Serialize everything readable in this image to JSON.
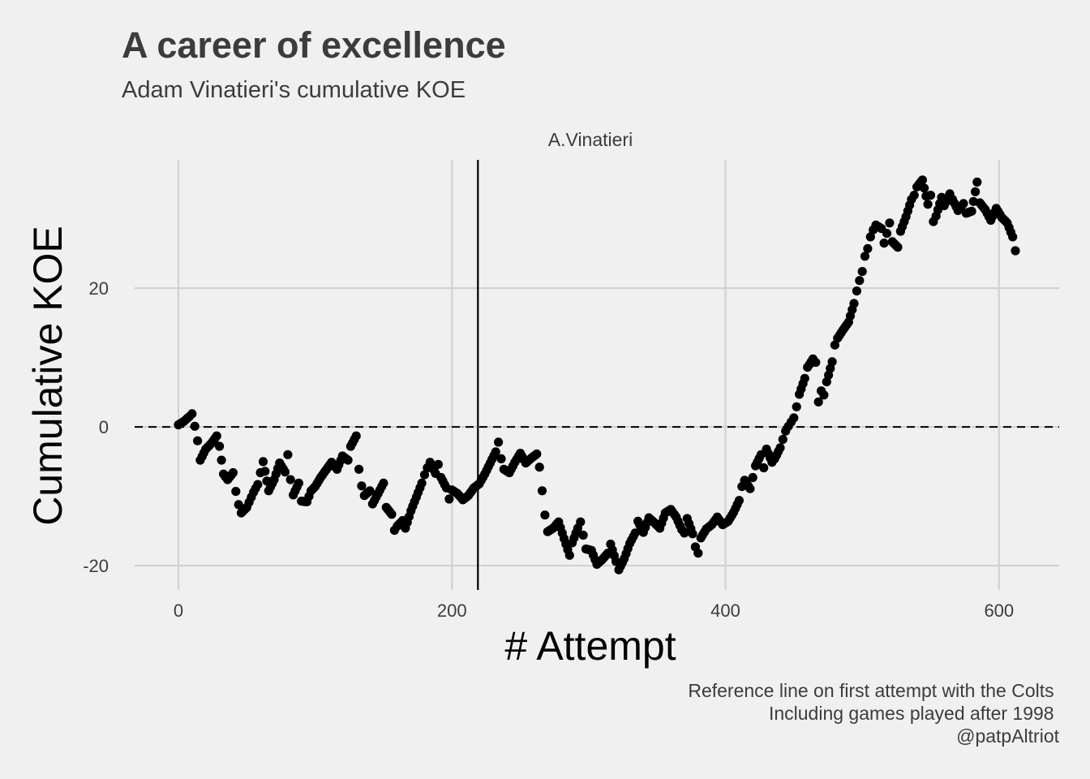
{
  "chart_data": {
    "type": "scatter",
    "title": "A career of excellence",
    "subtitle": "Adam Vinatieri's cumulative KOE",
    "facet_label": "A.Vinatieri",
    "xlabel": "# Attempt",
    "ylabel": "Cumulative KOE",
    "xlim": [
      -32,
      644
    ],
    "ylim": [
      -23.5,
      38.5
    ],
    "x_ticks": [
      0,
      200,
      400,
      600
    ],
    "x_tick_labels": [
      "0",
      "200",
      "400",
      "600"
    ],
    "y_ticks": [
      -20,
      0,
      20
    ],
    "y_tick_labels": [
      "-20",
      "0",
      "20"
    ],
    "reference_hline": {
      "y": 0,
      "style": "dashed"
    },
    "reference_vline": {
      "x": 219,
      "note": "first attempt with the Colts"
    },
    "grid": true,
    "point_color": "#000000",
    "series": [
      {
        "points_xy": [
          [
            0,
            0.3
          ],
          [
            4,
            0.8
          ],
          [
            8,
            1.5
          ],
          [
            10,
            1.9
          ],
          [
            12,
            0.1
          ],
          [
            14,
            -2
          ],
          [
            16,
            -4.8
          ],
          [
            20,
            -3.2
          ],
          [
            24,
            -2.4
          ],
          [
            28,
            -1.3
          ],
          [
            30,
            -2.8
          ],
          [
            33,
            -6.8
          ],
          [
            36,
            -7.6
          ],
          [
            40,
            -6.6
          ],
          [
            42,
            -9.3
          ],
          [
            44,
            -11.2
          ],
          [
            46,
            -12.4
          ],
          [
            50,
            -11.6
          ],
          [
            55,
            -9.4
          ],
          [
            58,
            -8.3
          ],
          [
            60,
            -6.6
          ],
          [
            62,
            -5
          ],
          [
            66,
            -9.2
          ],
          [
            70,
            -7.6
          ],
          [
            74,
            -5.2
          ],
          [
            78,
            -6.5
          ],
          [
            80,
            -4
          ],
          [
            82,
            -7.6
          ],
          [
            84,
            -9.8
          ],
          [
            88,
            -8.1
          ],
          [
            90,
            -10.7
          ],
          [
            94,
            -10.8
          ],
          [
            97,
            -9.2
          ],
          [
            100,
            -8.6
          ],
          [
            104,
            -7.3
          ],
          [
            108,
            -6.2
          ],
          [
            112,
            -5.1
          ],
          [
            116,
            -6.1
          ],
          [
            120,
            -4.2
          ],
          [
            124,
            -4.8
          ],
          [
            126,
            -2.8
          ],
          [
            130,
            -1.3
          ],
          [
            132,
            -6.1
          ],
          [
            134,
            -8.5
          ],
          [
            136,
            -9.9
          ],
          [
            140,
            -9.2
          ],
          [
            142,
            -11.1
          ],
          [
            146,
            -9.6
          ],
          [
            150,
            -8.1
          ],
          [
            152,
            -11.6
          ],
          [
            156,
            -12.6
          ],
          [
            158,
            -14.9
          ],
          [
            160,
            -14.3
          ],
          [
            164,
            -13.5
          ],
          [
            166,
            -14.6
          ],
          [
            170,
            -12.1
          ],
          [
            174,
            -10.1
          ],
          [
            178,
            -8.1
          ],
          [
            180,
            -6.9
          ],
          [
            182,
            -5.9
          ],
          [
            184,
            -5.1
          ],
          [
            188,
            -6.7
          ],
          [
            190,
            -5.4
          ],
          [
            192,
            -7.3
          ],
          [
            196,
            -8.8
          ],
          [
            198,
            -10.4
          ],
          [
            200,
            -9.1
          ],
          [
            204,
            -9.6
          ],
          [
            208,
            -10.5
          ],
          [
            212,
            -9.9
          ],
          [
            216,
            -8.8
          ],
          [
            220,
            -8.2
          ],
          [
            224,
            -6.8
          ],
          [
            228,
            -5.2
          ],
          [
            232,
            -3.6
          ],
          [
            234,
            -2.2
          ],
          [
            236,
            -4.6
          ],
          [
            238,
            -6.1
          ],
          [
            242,
            -6.6
          ],
          [
            246,
            -5.1
          ],
          [
            250,
            -3.8
          ],
          [
            254,
            -5.2
          ],
          [
            258,
            -4.5
          ],
          [
            262,
            -3.9
          ],
          [
            264,
            -5.8
          ],
          [
            266,
            -9.2
          ],
          [
            268,
            -12.7
          ],
          [
            270,
            -15.1
          ],
          [
            274,
            -14.6
          ],
          [
            278,
            -13.7
          ],
          [
            282,
            -16.1
          ],
          [
            286,
            -18.5
          ],
          [
            288,
            -16.7
          ],
          [
            292,
            -14.6
          ],
          [
            294,
            -13.7
          ],
          [
            296,
            -15.6
          ],
          [
            298,
            -17.6
          ],
          [
            302,
            -17.8
          ],
          [
            306,
            -19.8
          ],
          [
            310,
            -19.1
          ],
          [
            314,
            -18.2
          ],
          [
            316,
            -16.9
          ],
          [
            320,
            -19.4
          ],
          [
            322,
            -20.6
          ],
          [
            326,
            -19
          ],
          [
            330,
            -16.8
          ],
          [
            334,
            -15.3
          ],
          [
            336,
            -13.6
          ],
          [
            340,
            -15.2
          ],
          [
            344,
            -13.1
          ],
          [
            348,
            -13.8
          ],
          [
            352,
            -14.6
          ],
          [
            356,
            -12.4
          ],
          [
            360,
            -11.9
          ],
          [
            364,
            -13
          ],
          [
            368,
            -14.8
          ],
          [
            370,
            -15.3
          ],
          [
            372,
            -13.2
          ],
          [
            376,
            -15.4
          ],
          [
            378,
            -17.3
          ],
          [
            380,
            -18.2
          ],
          [
            382,
            -16
          ],
          [
            386,
            -14.7
          ],
          [
            390,
            -14.1
          ],
          [
            394,
            -13
          ],
          [
            398,
            -14.1
          ],
          [
            402,
            -13.6
          ],
          [
            406,
            -12.3
          ],
          [
            410,
            -10.6
          ],
          [
            412,
            -8.6
          ],
          [
            414,
            -7.7
          ],
          [
            418,
            -8.9
          ],
          [
            420,
            -7.3
          ],
          [
            422,
            -5.6
          ],
          [
            426,
            -4
          ],
          [
            428,
            -5.9
          ],
          [
            430,
            -3.2
          ],
          [
            434,
            -5.1
          ],
          [
            436,
            -4.6
          ],
          [
            440,
            -3
          ],
          [
            442,
            -1.8
          ],
          [
            444,
            -0.6
          ],
          [
            446,
            0.1
          ],
          [
            448,
            0.7
          ],
          [
            450,
            1.3
          ],
          [
            452,
            2.9
          ],
          [
            454,
            4.7
          ],
          [
            458,
            7
          ],
          [
            460,
            8.6
          ],
          [
            464,
            9.8
          ],
          [
            466,
            9.3
          ],
          [
            468,
            3.6
          ],
          [
            470,
            5.2
          ],
          [
            472,
            4.6
          ],
          [
            474,
            6.5
          ],
          [
            478,
            9.4
          ],
          [
            480,
            11.8
          ],
          [
            482,
            12.8
          ],
          [
            486,
            14
          ],
          [
            490,
            15.1
          ],
          [
            494,
            17.8
          ],
          [
            496,
            19.6
          ],
          [
            498,
            21.1
          ],
          [
            500,
            22.4
          ],
          [
            502,
            24.6
          ],
          [
            504,
            25.7
          ],
          [
            506,
            27.4
          ],
          [
            508,
            28.4
          ],
          [
            510,
            29.1
          ],
          [
            514,
            28.6
          ],
          [
            516,
            26.5
          ],
          [
            518,
            27.9
          ],
          [
            520,
            29.4
          ],
          [
            522,
            26.7
          ],
          [
            526,
            25.9
          ],
          [
            528,
            28.2
          ],
          [
            532,
            30.3
          ],
          [
            536,
            32.8
          ],
          [
            538,
            33.4
          ],
          [
            540,
            34.6
          ],
          [
            544,
            35.6
          ],
          [
            548,
            32.1
          ],
          [
            550,
            33.4
          ],
          [
            552,
            29.6
          ],
          [
            554,
            30.4
          ],
          [
            558,
            33.1
          ],
          [
            560,
            31.9
          ],
          [
            564,
            33.6
          ],
          [
            566,
            32.8
          ],
          [
            570,
            31.2
          ],
          [
            574,
            32.2
          ],
          [
            576,
            30.8
          ],
          [
            580,
            31.1
          ],
          [
            584,
            35.3
          ],
          [
            586,
            32.3
          ],
          [
            590,
            31.3
          ],
          [
            594,
            29.8
          ],
          [
            598,
            31.5
          ],
          [
            602,
            30.2
          ],
          [
            606,
            29.4
          ],
          [
            610,
            27.4
          ],
          [
            612,
            25.4
          ]
        ]
      }
    ],
    "caption_lines": [
      "Reference line on first attempt with the Colts ",
      "Including games played after 1998 ",
      "@patpAltriot"
    ]
  }
}
